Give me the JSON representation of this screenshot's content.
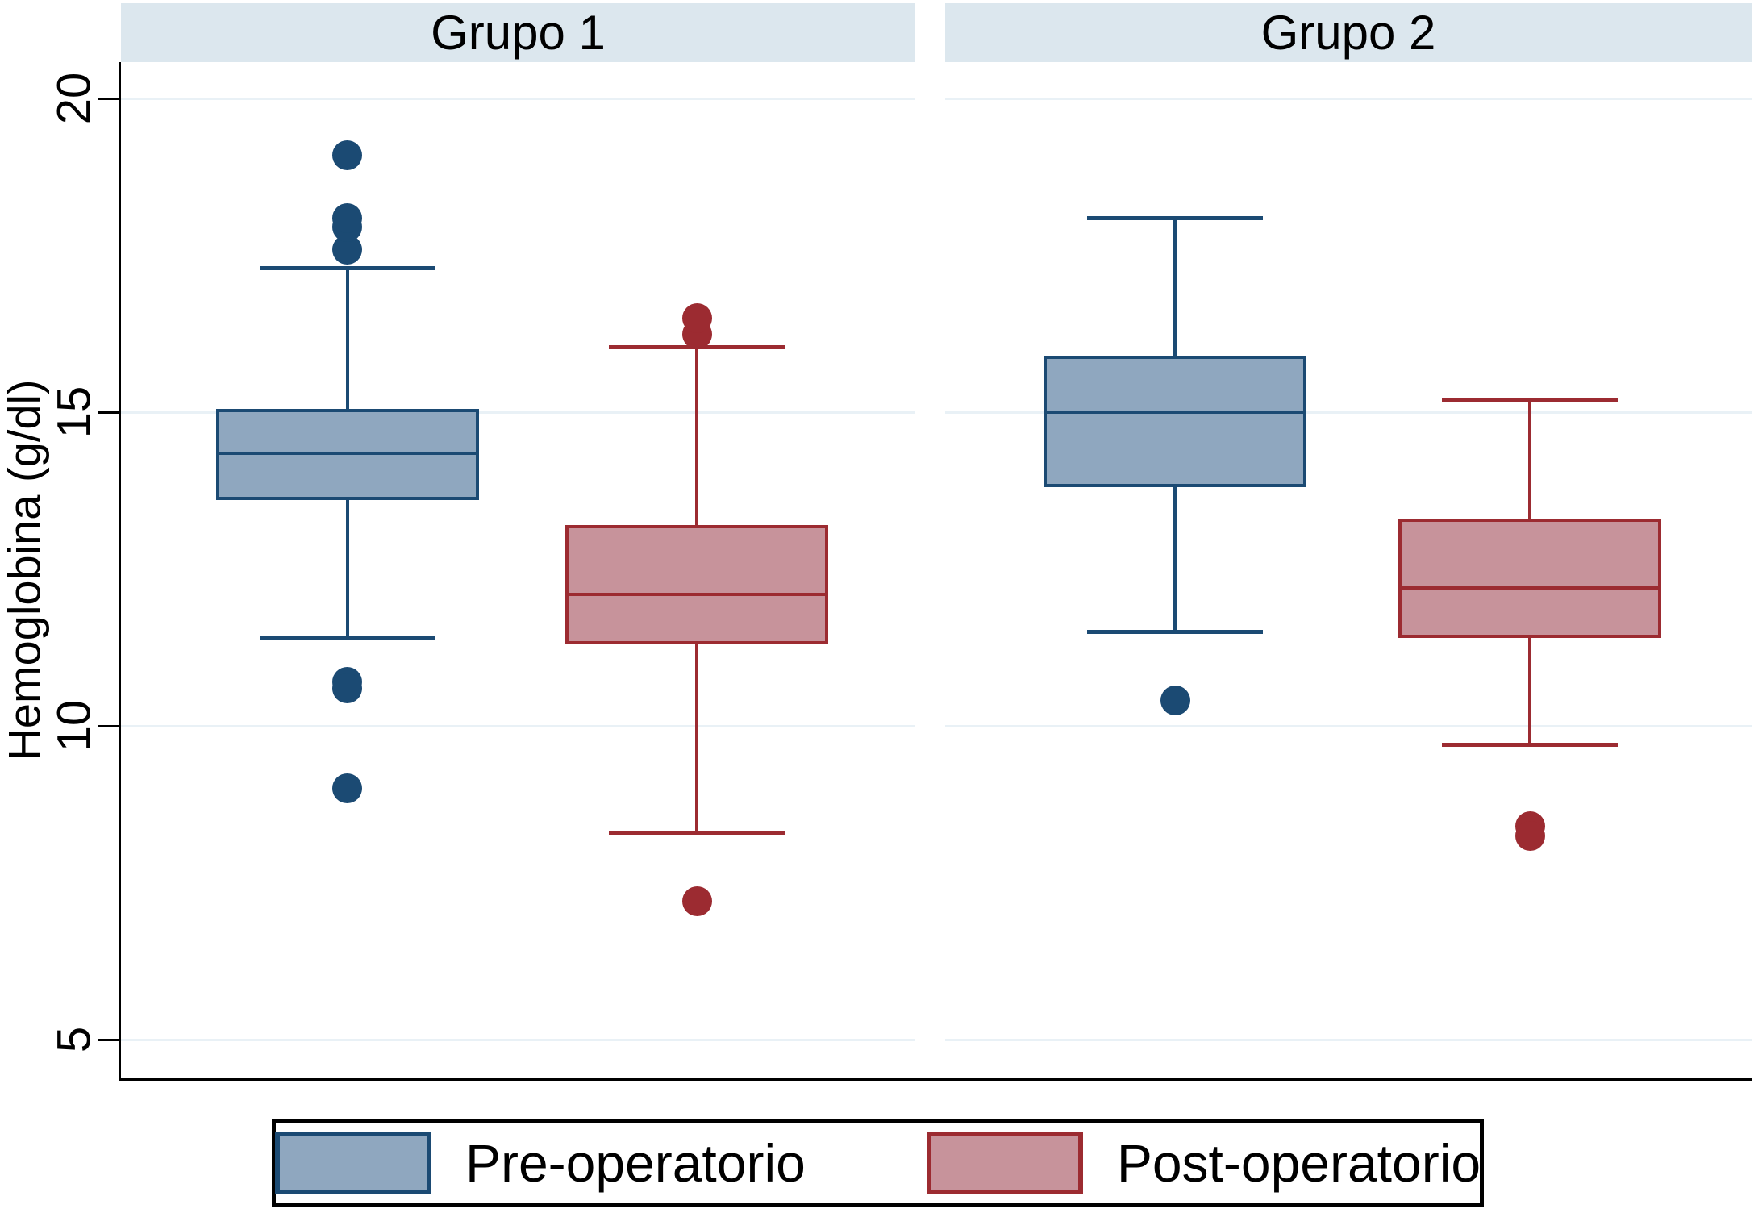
{
  "chart_data": {
    "type": "box",
    "title": "",
    "ylabel": "Hemoglobina (g/dl)",
    "yticks": [
      20,
      15,
      10,
      5
    ],
    "ylim": [
      4.4,
      20.6
    ],
    "grid": true,
    "legend": [
      "Pre-operatorio",
      "Post-operatorio"
    ],
    "colors": {
      "pre": {
        "fill": "#8fa7bf",
        "stroke": "#1b4a73"
      },
      "post": {
        "fill": "#c7939b",
        "stroke": "#9c2b31"
      }
    },
    "style": {
      "strip_bg": "#dce7ee",
      "grid_color": "#e9f1f6",
      "axis_color": "#000000",
      "background": "#ffffff"
    },
    "panels": [
      {
        "label": "Grupo 1",
        "series": [
          {
            "name": "Pre-operatorio",
            "colorKey": "pre",
            "whisker_low": 11.4,
            "q1": 13.6,
            "median": 14.35,
            "q3": 15.05,
            "whisker_high": 17.3,
            "outliers_high": [
              17.6,
              17.95,
              18.1,
              19.1
            ],
            "outliers_low": [
              10.7,
              10.6,
              9.0
            ]
          },
          {
            "name": "Post-operatorio",
            "colorKey": "post",
            "whisker_low": 8.3,
            "q1": 11.3,
            "median": 12.1,
            "q3": 13.2,
            "whisker_high": 16.05,
            "outliers_high": [
              16.25,
              16.5
            ],
            "outliers_low": [
              7.2
            ]
          }
        ]
      },
      {
        "label": "Grupo 2",
        "series": [
          {
            "name": "Pre-operatorio",
            "colorKey": "pre",
            "whisker_low": 11.5,
            "q1": 13.8,
            "median": 15.0,
            "q3": 15.9,
            "whisker_high": 18.1,
            "outliers_high": [],
            "outliers_low": [
              10.4
            ]
          },
          {
            "name": "Post-operatorio",
            "colorKey": "post",
            "whisker_low": 9.7,
            "q1": 11.4,
            "median": 12.2,
            "q3": 13.3,
            "whisker_high": 15.2,
            "outliers_high": [],
            "outliers_low": [
              8.4,
              8.25
            ]
          }
        ]
      }
    ]
  }
}
